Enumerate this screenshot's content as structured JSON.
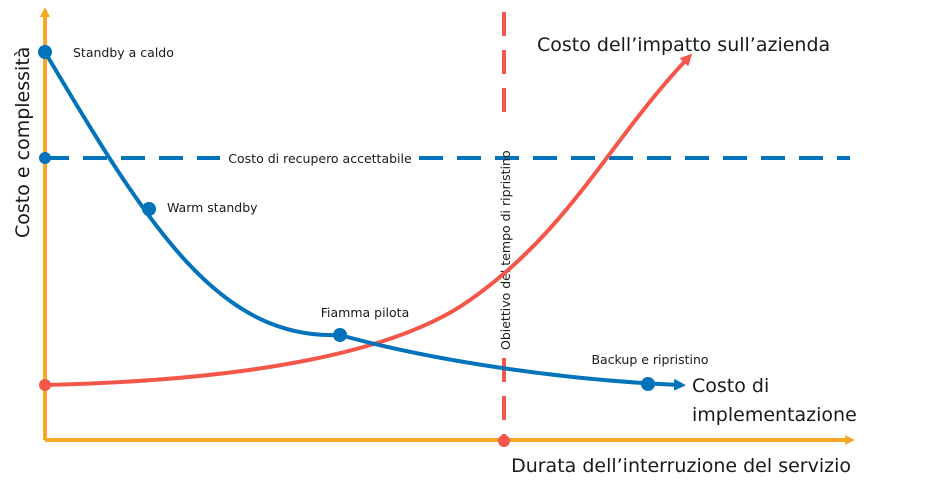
{
  "colors": {
    "axis": "#F9A825",
    "implementation_curve": "#0073BB",
    "impact_curve": "#F4574A",
    "acceptable_cost_line": "#0073BB",
    "rto_line": "#F4574A"
  },
  "axes": {
    "y_label": "Costo e complessità",
    "x_label": "Durata dell’interruzione del servizio"
  },
  "curves": {
    "impact_label": "Costo dell’impatto sull’azienda",
    "implementation_label_line1": "Costo di",
    "implementation_label_line2": "implementazione"
  },
  "lines": {
    "acceptable_cost_label": "Costo di recupero accettabile",
    "rto_label": "Obiettivo del tempo di ripristino"
  },
  "strategies": [
    {
      "label": "Standby a caldo"
    },
    {
      "label": "Warm standby"
    },
    {
      "label": "Fiamma pilota"
    },
    {
      "label": "Backup e ripristino"
    }
  ]
}
